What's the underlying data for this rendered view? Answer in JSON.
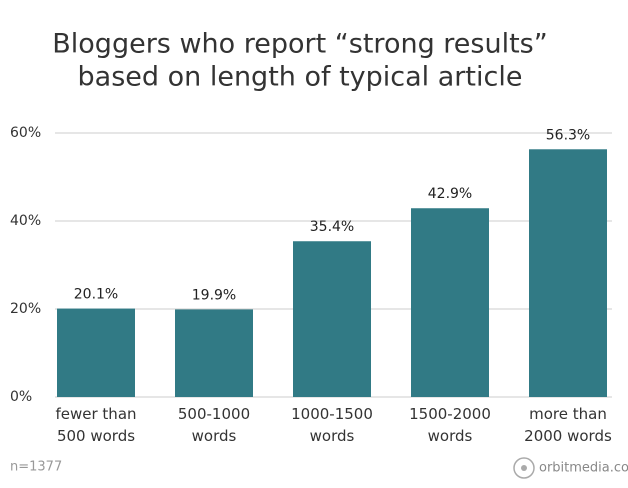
{
  "chart_data": {
    "type": "bar",
    "title": "Bloggers who report “strong results”",
    "subtitle": "based on length of typical article",
    "categories": [
      "fewer than 500 words",
      "500-1000 words",
      "1000-1500 words",
      "1500-2000 words",
      "more than 2000 words"
    ],
    "values": [
      20.1,
      19.9,
      35.4,
      42.9,
      56.3
    ],
    "value_labels": [
      "20.1%",
      "19.9%",
      "35.4%",
      "42.9%",
      "56.3%"
    ],
    "color": "#317a85",
    "ylim": [
      0,
      60
    ],
    "yticks": [
      {
        "value": 0,
        "label": "0%"
      },
      {
        "value": 20,
        "label": "20%"
      },
      {
        "value": 40,
        "label": "40%"
      },
      {
        "value": 60,
        "label": "60%"
      }
    ],
    "grid": true,
    "note": "n=1377",
    "source": "orbitmedia.com"
  }
}
